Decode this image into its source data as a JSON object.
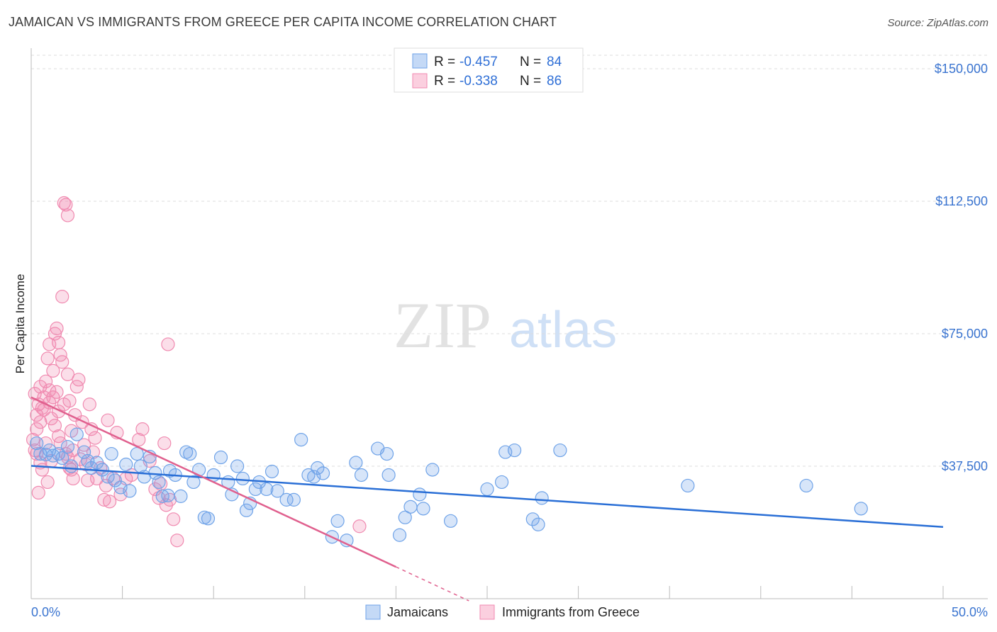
{
  "title": "JAMAICAN VS IMMIGRANTS FROM GREECE PER CAPITA INCOME CORRELATION CHART",
  "source": "Source: ZipAtlas.com",
  "watermark": {
    "zip": "ZIP",
    "atlas": "atlas"
  },
  "colors": {
    "blue": "#6fa3e8",
    "blue_line": "#2a6fd6",
    "pink": "#f08ab0",
    "pink_line": "#e0608e",
    "grid": "#dddddd",
    "axis_text": "#3a74d0"
  },
  "stats_legend": [
    {
      "r_label": "R =",
      "r_value": "-0.457",
      "n_label": "N =",
      "n_value": "84",
      "color": "#6fa3e8"
    },
    {
      "r_label": "R =",
      "r_value": "-0.338",
      "n_label": "N =",
      "n_value": "86",
      "color": "#f08ab0"
    }
  ],
  "chart_data": {
    "type": "scatter",
    "title": "JAMAICAN VS IMMIGRANTS FROM GREECE PER CAPITA INCOME CORRELATION CHART",
    "xlabel": "",
    "ylabel": "Per Capita Income",
    "xlim": [
      0,
      50
    ],
    "ylim": [
      0,
      157500
    ],
    "x_tick_labels": [
      "0.0%",
      "50.0%"
    ],
    "y_ticks": [
      37500,
      75000,
      112500,
      150000
    ],
    "y_tick_labels": [
      "$37,500",
      "$75,000",
      "$112,500",
      "$150,000"
    ],
    "grid": true,
    "legend_position": "bottom",
    "series": [
      {
        "name": "Jamaicans",
        "color": "#6fa3e8",
        "trend": {
          "x": [
            0,
            50
          ],
          "y": [
            37600,
            20300
          ]
        },
        "points": [
          [
            0.3,
            44000
          ],
          [
            0.5,
            41000
          ],
          [
            0.8,
            40800
          ],
          [
            1.0,
            42000
          ],
          [
            1.2,
            40500
          ],
          [
            1.5,
            41000
          ],
          [
            1.7,
            39800
          ],
          [
            2.0,
            43000
          ],
          [
            2.2,
            37500
          ],
          [
            2.5,
            46500
          ],
          [
            2.9,
            41500
          ],
          [
            3.1,
            39000
          ],
          [
            3.3,
            37000
          ],
          [
            3.6,
            38500
          ],
          [
            3.9,
            36500
          ],
          [
            4.2,
            34500
          ],
          [
            4.4,
            41000
          ],
          [
            4.6,
            33500
          ],
          [
            4.9,
            31500
          ],
          [
            5.2,
            38000
          ],
          [
            5.4,
            30500
          ],
          [
            5.8,
            41000
          ],
          [
            6.0,
            37500
          ],
          [
            6.2,
            34500
          ],
          [
            6.5,
            40200
          ],
          [
            6.8,
            35600
          ],
          [
            7.0,
            33000
          ],
          [
            7.2,
            29000
          ],
          [
            7.5,
            29200
          ],
          [
            7.6,
            36200
          ],
          [
            7.9,
            35000
          ],
          [
            8.2,
            29000
          ],
          [
            8.5,
            41500
          ],
          [
            8.7,
            41000
          ],
          [
            8.9,
            33000
          ],
          [
            9.2,
            36500
          ],
          [
            9.5,
            23000
          ],
          [
            9.7,
            22700
          ],
          [
            10.0,
            35000
          ],
          [
            10.4,
            40000
          ],
          [
            10.8,
            33000
          ],
          [
            11.0,
            29500
          ],
          [
            11.3,
            37500
          ],
          [
            11.6,
            34000
          ],
          [
            11.8,
            25000
          ],
          [
            12.0,
            27000
          ],
          [
            12.3,
            31000
          ],
          [
            12.5,
            33000
          ],
          [
            12.9,
            31000
          ],
          [
            13.2,
            36000
          ],
          [
            13.5,
            30500
          ],
          [
            14.0,
            28000
          ],
          [
            14.4,
            28000
          ],
          [
            14.8,
            45000
          ],
          [
            15.2,
            35000
          ],
          [
            15.5,
            34500
          ],
          [
            15.7,
            37000
          ],
          [
            16.0,
            35500
          ],
          [
            16.5,
            17500
          ],
          [
            16.8,
            22000
          ],
          [
            17.3,
            16500
          ],
          [
            17.8,
            38500
          ],
          [
            18.1,
            35000
          ],
          [
            19.0,
            42500
          ],
          [
            19.5,
            41000
          ],
          [
            19.6,
            35000
          ],
          [
            20.2,
            18000
          ],
          [
            20.5,
            23000
          ],
          [
            20.8,
            26000
          ],
          [
            21.3,
            29500
          ],
          [
            21.5,
            25500
          ],
          [
            22.0,
            36500
          ],
          [
            23.0,
            22000
          ],
          [
            25.0,
            31000
          ],
          [
            25.8,
            33000
          ],
          [
            26.0,
            41500
          ],
          [
            26.5,
            42000
          ],
          [
            27.5,
            22500
          ],
          [
            27.8,
            21000
          ],
          [
            28.0,
            28500
          ],
          [
            29.0,
            42000
          ],
          [
            36.0,
            32000
          ],
          [
            42.5,
            32000
          ],
          [
            45.5,
            25500
          ]
        ]
      },
      {
        "name": "Immigrants from Greece",
        "color": "#f08ab0",
        "trend": {
          "x": [
            0,
            20
          ],
          "y": [
            57000,
            9000
          ]
        },
        "trend_dashed": {
          "x": [
            20,
            24
          ],
          "y": [
            9000,
            -600
          ]
        },
        "points": [
          [
            0.1,
            45000
          ],
          [
            0.2,
            42000
          ],
          [
            0.2,
            58000
          ],
          [
            0.3,
            52000
          ],
          [
            0.3,
            48000
          ],
          [
            0.4,
            55000
          ],
          [
            0.5,
            60000
          ],
          [
            0.5,
            50000
          ],
          [
            0.6,
            54000
          ],
          [
            0.7,
            57000
          ],
          [
            0.7,
            53500
          ],
          [
            0.8,
            44000
          ],
          [
            0.8,
            61500
          ],
          [
            0.9,
            68000
          ],
          [
            1.0,
            59000
          ],
          [
            1.0,
            55500
          ],
          [
            1.0,
            72000
          ],
          [
            1.1,
            51000
          ],
          [
            1.2,
            57000
          ],
          [
            1.2,
            64500
          ],
          [
            1.3,
            49000
          ],
          [
            1.4,
            58500
          ],
          [
            1.5,
            53000
          ],
          [
            1.5,
            46000
          ],
          [
            1.6,
            44000
          ],
          [
            1.7,
            67000
          ],
          [
            1.8,
            55000
          ],
          [
            1.9,
            41000
          ],
          [
            2.0,
            40000
          ],
          [
            2.0,
            63500
          ],
          [
            2.1,
            56000
          ],
          [
            2.2,
            47500
          ],
          [
            2.3,
            34000
          ],
          [
            2.3,
            42000
          ],
          [
            2.4,
            52000
          ],
          [
            2.5,
            60000
          ],
          [
            2.6,
            62000
          ],
          [
            2.7,
            39500
          ],
          [
            2.8,
            50000
          ],
          [
            2.9,
            43500
          ],
          [
            3.0,
            38000
          ],
          [
            3.1,
            33500
          ],
          [
            3.2,
            55000
          ],
          [
            3.3,
            48000
          ],
          [
            3.4,
            41500
          ],
          [
            3.5,
            45500
          ],
          [
            3.6,
            34000
          ],
          [
            3.8,
            37000
          ],
          [
            4.0,
            28000
          ],
          [
            4.1,
            32000
          ],
          [
            4.2,
            50500
          ],
          [
            4.3,
            27500
          ],
          [
            4.5,
            34000
          ],
          [
            4.7,
            47000
          ],
          [
            4.9,
            29500
          ],
          [
            5.2,
            34000
          ],
          [
            5.5,
            35000
          ],
          [
            5.9,
            45000
          ],
          [
            6.1,
            48000
          ],
          [
            6.5,
            39000
          ],
          [
            6.8,
            31000
          ],
          [
            7.0,
            28500
          ],
          [
            7.1,
            32500
          ],
          [
            7.3,
            44000
          ],
          [
            7.4,
            26500
          ],
          [
            7.5,
            72000
          ],
          [
            7.6,
            28000
          ],
          [
            7.8,
            22500
          ],
          [
            8.0,
            16500
          ],
          [
            0.4,
            30000
          ],
          [
            0.6,
            36500
          ],
          [
            0.9,
            33000
          ],
          [
            1.1,
            39000
          ],
          [
            1.3,
            75000
          ],
          [
            1.4,
            76500
          ],
          [
            1.5,
            72500
          ],
          [
            1.6,
            69000
          ],
          [
            1.7,
            85500
          ],
          [
            1.8,
            112000
          ],
          [
            1.9,
            111500
          ],
          [
            2.0,
            108500
          ],
          [
            2.1,
            37000
          ],
          [
            2.2,
            36500
          ],
          [
            18.0,
            20500
          ],
          [
            0.3,
            41000
          ],
          [
            0.5,
            38500
          ]
        ]
      }
    ]
  },
  "bottom_legend": [
    {
      "label": "Jamaicans",
      "color": "#6fa3e8"
    },
    {
      "label": "Immigrants from Greece",
      "color": "#f08ab0"
    }
  ]
}
